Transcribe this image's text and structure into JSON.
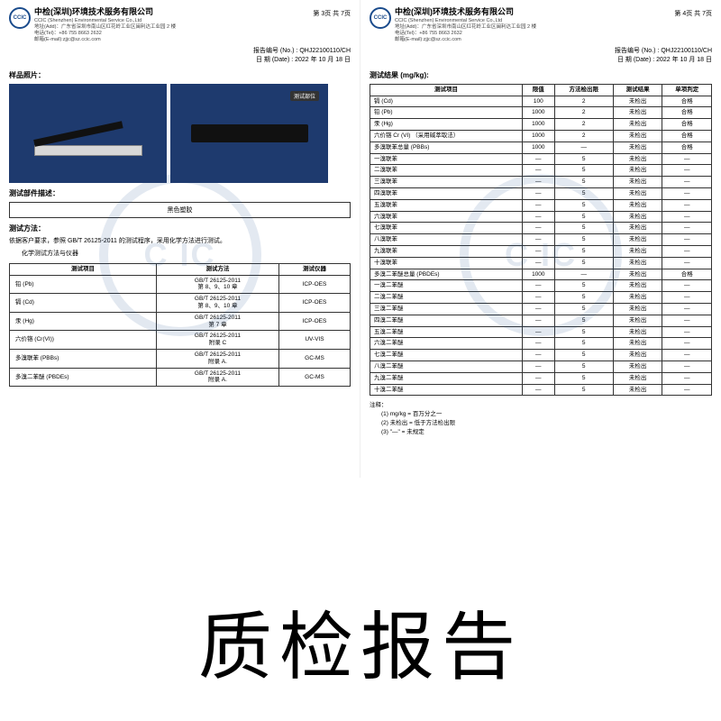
{
  "company": {
    "cn": "中检(深圳)环境技术服务有限公司",
    "en": "CCIC (Shenzhen) Environmental Service Co.,Ltd",
    "addr": "地址(Add)：广东省深圳市南山区红花岭工业区闽利达工业园 2 楼",
    "tel": "电话(Tel)：+86 755 8663 2632",
    "email": "邮箱(E-mail):zjjc@sz.ccic.com"
  },
  "logo": "CCIC",
  "report": {
    "noLabel": "报告编号 (No.) :",
    "no": "QHJ22100110/CH",
    "dateLabel": "日 期 (Date) :",
    "date": "2022 年 10 月 18 日"
  },
  "page3": {
    "num": "第 3页 共 7页",
    "photoTitle": "样品照片：",
    "testPartLabel": "测试部位",
    "descTitle": "测试部件描述：",
    "descVal": "黑色塑胶",
    "methodTitle": "测试方法：",
    "methodTxt": "依据客户要求，参照 GB/T 26125-2011 的测试程序，采用化学方法进行测试。",
    "subTitle": "化学测试方法与仪器",
    "mheaders": [
      "测试项目",
      "测试方法",
      "测试仪器"
    ],
    "mrows": [
      [
        "铅 (Pb)",
        "GB/T 26125-2011\n第 8、9、10 章",
        "ICP-OES"
      ],
      [
        "镉 (Cd)",
        "GB/T 26125-2011\n第 8、9、10 章",
        "ICP-OES"
      ],
      [
        "汞 (Hg)",
        "GB/T 26125-2011\n第 7 章",
        "ICP-OES"
      ],
      [
        "六价铬 (Cr(VI))",
        "GB/T 26125-2011\n附录 C",
        "UV-VIS"
      ],
      [
        "多溴联苯 (PBBs)",
        "GB/T 26125-2011\n附录 A.",
        "GC-MS"
      ],
      [
        "多溴二苯醚 (PBDEs)",
        "GB/T 26125-2011\n附录 A.",
        "GC-MS"
      ]
    ]
  },
  "page4": {
    "num": "第 4页 共 7页",
    "resultTitle": "测试结果 (mg/kg):",
    "rheaders": [
      "测试项目",
      "限值",
      "方法检出限",
      "测试结果",
      "单项判定"
    ],
    "rrows": [
      [
        "镉 (Cd)",
        "100",
        "2",
        "未检出",
        "合格"
      ],
      [
        "铅 (Pb)",
        "1000",
        "2",
        "未检出",
        "合格"
      ],
      [
        "汞 (Hg)",
        "1000",
        "2",
        "未检出",
        "合格"
      ],
      [
        "六价铬 Cr (VI) （采用碱萃取法）",
        "1000",
        "2",
        "未检出",
        "合格"
      ],
      [
        "多溴联苯总量 (PBBs)",
        "1000",
        "—",
        "未检出",
        "合格"
      ],
      [
        "一溴联苯",
        "—",
        "5",
        "未检出",
        "—"
      ],
      [
        "二溴联苯",
        "—",
        "5",
        "未检出",
        "—"
      ],
      [
        "三溴联苯",
        "—",
        "5",
        "未检出",
        "—"
      ],
      [
        "四溴联苯",
        "—",
        "5",
        "未检出",
        "—"
      ],
      [
        "五溴联苯",
        "—",
        "5",
        "未检出",
        "—"
      ],
      [
        "六溴联苯",
        "—",
        "5",
        "未检出",
        "—"
      ],
      [
        "七溴联苯",
        "—",
        "5",
        "未检出",
        "—"
      ],
      [
        "八溴联苯",
        "—",
        "5",
        "未检出",
        "—"
      ],
      [
        "九溴联苯",
        "—",
        "5",
        "未检出",
        "—"
      ],
      [
        "十溴联苯",
        "—",
        "5",
        "未检出",
        "—"
      ],
      [
        "多溴二苯醚总量 (PBDEs)",
        "1000",
        "—",
        "未检出",
        "合格"
      ],
      [
        "一溴二苯醚",
        "—",
        "5",
        "未检出",
        "—"
      ],
      [
        "二溴二苯醚",
        "—",
        "5",
        "未检出",
        "—"
      ],
      [
        "三溴二苯醚",
        "—",
        "5",
        "未检出",
        "—"
      ],
      [
        "四溴二苯醚",
        "—",
        "5",
        "未检出",
        "—"
      ],
      [
        "五溴二苯醚",
        "—",
        "5",
        "未检出",
        "—"
      ],
      [
        "六溴二苯醚",
        "—",
        "5",
        "未检出",
        "—"
      ],
      [
        "七溴二苯醚",
        "—",
        "5",
        "未检出",
        "—"
      ],
      [
        "八溴二苯醚",
        "—",
        "5",
        "未检出",
        "—"
      ],
      [
        "九溴二苯醚",
        "—",
        "5",
        "未检出",
        "—"
      ],
      [
        "十溴二苯醚",
        "—",
        "5",
        "未检出",
        "—"
      ]
    ],
    "notesTitle": "注释：",
    "notes": [
      "(1) mg/kg = 百万分之一",
      "(2) 未检出 = 低于方法检出限",
      "(3) \"—\" = 未规定"
    ]
  },
  "bigTitle": "质检报告",
  "colors": {
    "brand": "#1a4b8c",
    "photoBg": "#1e3a6e"
  }
}
